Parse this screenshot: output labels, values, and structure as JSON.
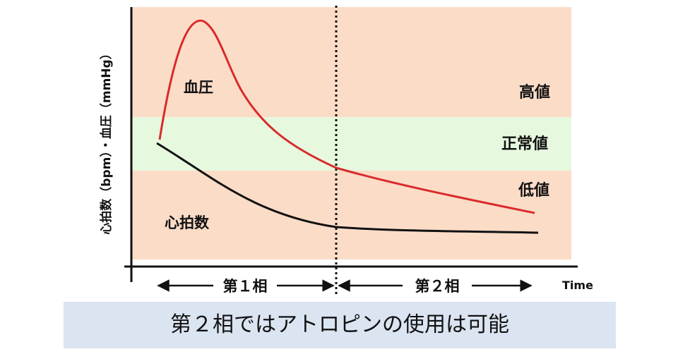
{
  "diagram": {
    "y_axis_label": "心拍数（bpm）・血圧（mmHg）",
    "x_axis_label": "Time",
    "zones": [
      {
        "label": "高値",
        "color": "#fbdcc7"
      },
      {
        "label": "正常値",
        "color": "#e6f8de"
      },
      {
        "label": "低値",
        "color": "#fbdcc7"
      }
    ],
    "curves": [
      {
        "label": "血圧",
        "color": "#d92b2b"
      },
      {
        "label": "心拍数",
        "color": "#111111"
      }
    ],
    "phases": [
      {
        "label": "第１相"
      },
      {
        "label": "第２相"
      }
    ]
  },
  "caption": "第２相ではアトロピンの使用は可能"
}
